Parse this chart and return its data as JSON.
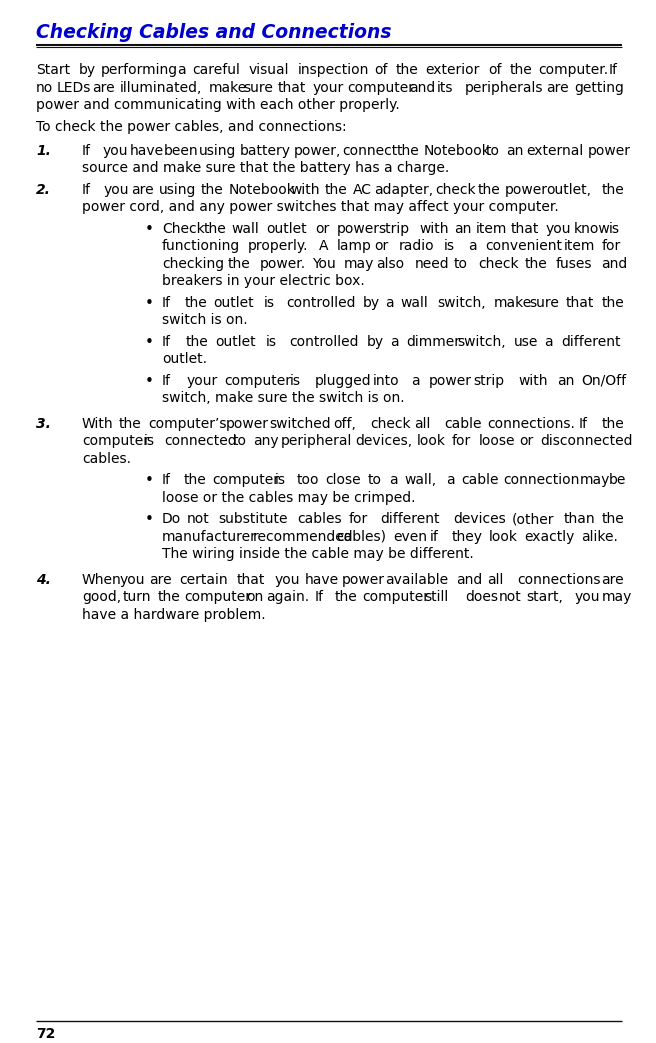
{
  "title": "Checking Cables and Connections",
  "title_color": "#0000CC",
  "page_number": "72",
  "bg_color": "#FFFFFF",
  "text_color": "#000000",
  "body_font_size": 10.0,
  "title_font_size": 13.5,
  "intro_text": "Start by performing a careful visual inspection of the exterior of the computer.  If no LEDs are illuminated, make sure that your computer and its peripherals are getting power and communicating with each other properly.",
  "intro2_text": "To check the power cables, and connections:",
  "items": [
    {
      "number": "1.",
      "text": "If you have been using battery power, connect the Notebook to an external power source and make sure that the battery has a charge."
    },
    {
      "number": "2.",
      "text": "If you are using the Notebook with the AC adapter, check the power outlet, the power cord, and any power switches that may affect your computer.",
      "bullets": [
        "Check the wall outlet or power strip with an item that you know is functioning properly. A lamp or radio is a convenient item for checking the power. You may also need to check the fuses and breakers in your electric box.",
        "If the outlet is controlled by a wall switch, make sure that the switch is on.",
        "If the outlet is controlled by a dimmer switch, use a different outlet.",
        "If your computer is plugged into a power strip with an On/Off switch, make sure the switch is on."
      ]
    },
    {
      "number": "3.",
      "text": "With the computer’s power switched off, check all cable connections. If the computer is connected to any peripheral devices, look for loose or disconnected cables.",
      "bullets": [
        "If the computer is too close to a wall, a cable connection may be loose or the cables may be crimped.",
        "Do not substitute cables for different devices (other than the manufacturer recommended cables) even if they look exactly alike. The wiring inside the cable may be different."
      ]
    },
    {
      "number": "4.",
      "text": "When you are certain that you have power available and all connections are good, turn the computer on again. If the computer still does not start, you may have a hardware problem."
    }
  ]
}
